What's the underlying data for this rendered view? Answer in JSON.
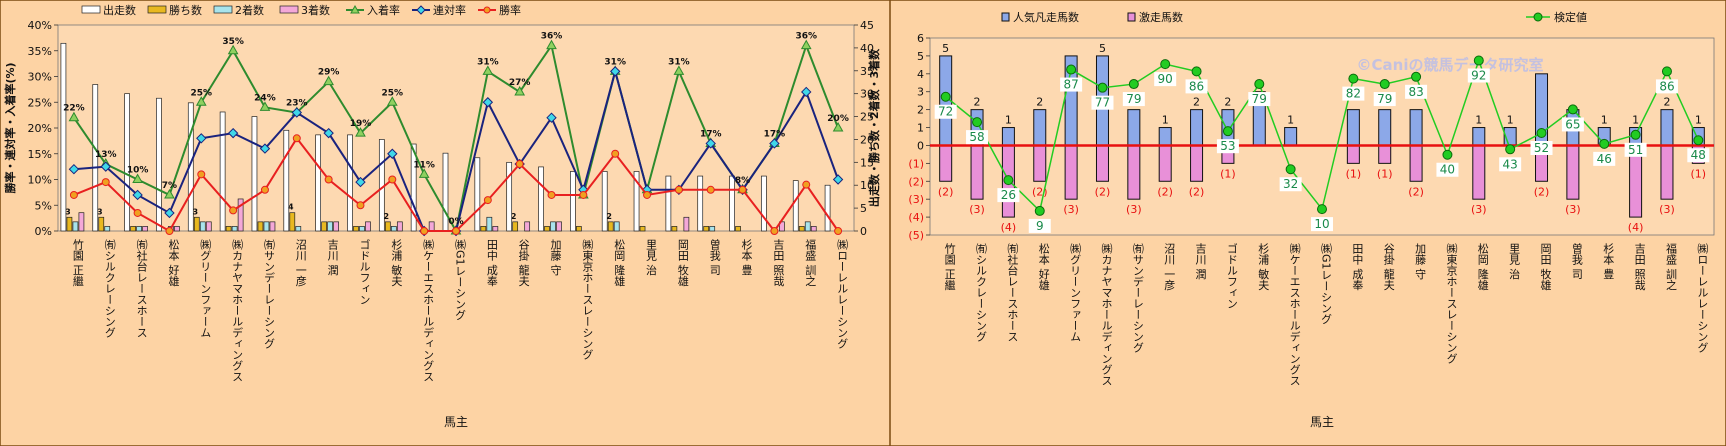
{
  "owners": [
    "竹園 正繼",
    "㈲シルクレーシング",
    "㈲社台レースホース",
    "松本 好雄",
    "㈱グリーンファーム",
    "㈱カナヤマホールディングス",
    "㈲サンデーレーシング",
    "沼川 一彦",
    "吉川 潤",
    "ゴドルフィン",
    "杉浦 敏夫",
    "㈱ケーエスホールディングス",
    "㈱G1レーシング",
    "田中 成奉",
    "谷掛 龍夫",
    "加藤 守",
    "㈱東京ホースレーシング",
    "松岡 隆雄",
    "里見 治",
    "岡田 牧雄",
    "曽我 司",
    "杉本 豊",
    "吉田 照哉",
    "福盛 訓之",
    "㈱ローレルレーシング"
  ],
  "colors": {
    "bg": "#fdd3a4",
    "frame": "#7a4a10",
    "sp_white": "#ffffff",
    "sp_gold": "#e8b820",
    "sp_cyan": "#a8e4ec",
    "sp_pink": "#f4a8d8",
    "win3": "#2e8b2e",
    "ren": "#1a237e",
    "win": "#e82020",
    "blue_bar": "#8ca8e8",
    "pink_bar": "#e890d8",
    "green": "#22cc22",
    "redline": "#e81010"
  },
  "chart_data": [
    {
      "type": "bar",
      "xlabel": "馬主",
      "ylabel_left": "勝率・連対率・入着率(%)",
      "ylabel_right": "出走数・勝ち数・2着数・3着数",
      "ylim_left": [
        0,
        40
      ],
      "ylim_right": [
        0,
        45
      ],
      "yticks_left": [
        "0%",
        "5%",
        "10%",
        "15%",
        "20%",
        "25%",
        "30%",
        "35%",
        "40%"
      ],
      "yticks_right": [
        "0",
        "5",
        "10",
        "15",
        "20",
        "25",
        "30",
        "35",
        "40",
        "45"
      ],
      "legend": [
        "出走数",
        "勝ち数",
        "2着数",
        "3着数",
        "入着率",
        "連対率",
        "勝率"
      ],
      "series_bar": [
        {
          "name": "出走数",
          "values": [
            41,
            32,
            30,
            29,
            28,
            26,
            25,
            22,
            21,
            21,
            20,
            19,
            17,
            16,
            15,
            14,
            13,
            13,
            13,
            12,
            12,
            12,
            12,
            11,
            10
          ]
        },
        {
          "name": "勝ち数",
          "values": [
            3,
            3,
            1,
            0,
            3,
            1,
            2,
            4,
            2,
            1,
            2,
            0,
            0,
            1,
            2,
            1,
            1,
            2,
            1,
            1,
            1,
            1,
            0,
            1,
            0
          ]
        },
        {
          "name": "2着数",
          "values": [
            2,
            1,
            1,
            1,
            2,
            1,
            2,
            1,
            2,
            1,
            1,
            0,
            0,
            3,
            0,
            2,
            0,
            2,
            0,
            0,
            1,
            0,
            0,
            2,
            0
          ]
        },
        {
          "name": "3着数",
          "values": [
            4,
            0,
            1,
            1,
            2,
            7,
            2,
            0,
            2,
            2,
            2,
            2,
            0,
            1,
            2,
            2,
            0,
            0,
            0,
            3,
            0,
            0,
            2,
            1,
            0
          ]
        }
      ],
      "series_line": [
        {
          "name": "入着率",
          "values": [
            22,
            13,
            10,
            7,
            25,
            35,
            24,
            23,
            29,
            19,
            25,
            11,
            0,
            31,
            27,
            36,
            7,
            31,
            8,
            31,
            17,
            8,
            17,
            36,
            20
          ]
        },
        {
          "name": "連対率",
          "values": [
            12,
            12.5,
            7,
            3.5,
            18,
            19,
            16,
            23,
            19,
            9.5,
            15,
            0,
            0,
            25,
            13,
            22,
            8,
            31,
            8,
            8,
            17,
            8,
            17,
            27,
            10
          ]
        },
        {
          "name": "勝率",
          "values": [
            7,
            9.5,
            3.5,
            0,
            11,
            4,
            8,
            18,
            10,
            5,
            10,
            0,
            0,
            6,
            13,
            7,
            7,
            15,
            7,
            8,
            8,
            8,
            0,
            9,
            0
          ]
        }
      ],
      "line_labels": [
        "22%",
        "13%",
        "10%",
        "7%",
        "25%",
        "35%",
        "24%",
        "23%",
        "29%",
        "19%",
        "25%",
        "11%",
        "0%",
        "31%",
        "27%",
        "36%",
        "",
        "31%",
        "",
        "31%",
        "17%",
        "8%",
        "17%",
        "36%",
        "20%"
      ],
      "bar_labels": [
        "3",
        "3",
        "",
        "",
        "3",
        "",
        "",
        "4",
        "",
        "",
        "2",
        "",
        "",
        "",
        "2",
        "",
        "",
        "2",
        "",
        "",
        "",
        "",
        "",
        "",
        ""
      ]
    },
    {
      "type": "bar",
      "xlabel": "馬主",
      "ylim": [
        -5,
        6
      ],
      "yticks": [
        "6",
        "5",
        "4",
        "3",
        "2",
        "1",
        "0",
        "(1)",
        "(2)",
        "(3)",
        "(4)",
        "(5)"
      ],
      "legend": [
        "人気凡走馬数",
        "激走馬数",
        "検定値"
      ],
      "watermark": "©Caniの競馬データ研究室",
      "series": [
        {
          "name": "人気凡走馬数",
          "values": [
            -2,
            -3,
            -4,
            -2,
            -3,
            -2,
            -3,
            -2,
            -2,
            -1,
            0,
            0,
            0,
            -1,
            -1,
            -2,
            0,
            -3,
            0,
            -2,
            -3,
            0,
            -4,
            -3,
            -1
          ]
        },
        {
          "name": "激走馬数",
          "values": [
            5,
            2,
            1,
            2,
            5,
            5,
            2,
            1,
            2,
            2,
            3,
            1,
            0,
            2,
            2,
            2,
            0,
            1,
            1,
            4,
            2,
            1,
            1,
            2,
            1
          ]
        },
        {
          "name": "検定値",
          "values": [
            72,
            58,
            26,
            9,
            87,
            77,
            79,
            90,
            86,
            53,
            79,
            32,
            10,
            82,
            79,
            83,
            40,
            92,
            43,
            52,
            65,
            46,
            51,
            86,
            48
          ]
        }
      ],
      "pos_labels": [
        "5",
        "2",
        "1",
        "2",
        "",
        "5",
        "2",
        "1",
        "2",
        "2",
        "",
        "1",
        "",
        "",
        "",
        "",
        "",
        "1",
        "1",
        "",
        "",
        "1",
        "1",
        "2",
        "1"
      ],
      "neg_labels": [
        "(2)",
        "(3)",
        "(4)",
        "(2)",
        "(3)",
        "(2)",
        "(3)",
        "(2)",
        "(2)",
        "(1)",
        "",
        "",
        "",
        "(1)",
        "(1)",
        "(2)",
        "",
        "(3)",
        "",
        "(2)",
        "(3)",
        "",
        "(4)",
        "(3)",
        "(1)"
      ]
    }
  ]
}
